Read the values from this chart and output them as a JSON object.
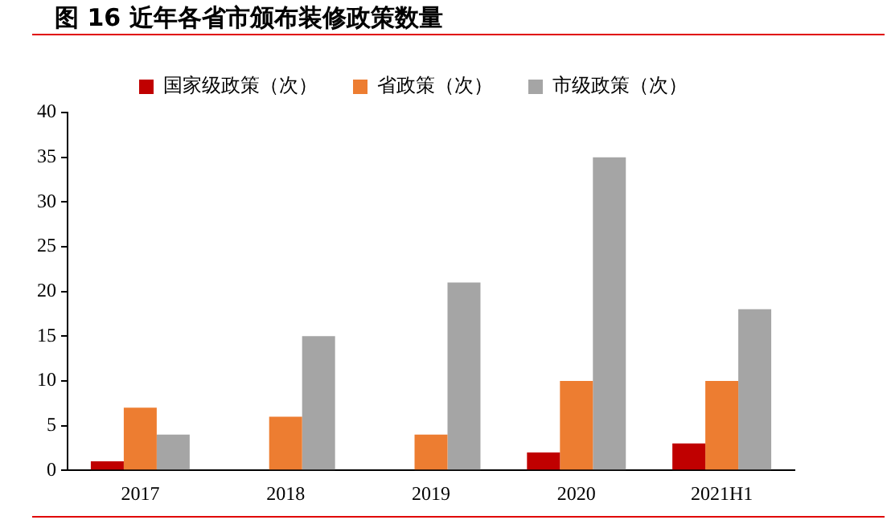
{
  "chart_data": {
    "type": "bar",
    "title": "图 16 近年各省市颁布装修政策数量",
    "categories": [
      "2017",
      "2018",
      "2019",
      "2020",
      "2021H1"
    ],
    "series": [
      {
        "name": "国家级政策（次）",
        "color": "#c00000",
        "values": [
          1,
          0,
          0,
          2,
          3
        ]
      },
      {
        "name": "省政策（次）",
        "color": "#ed7d31",
        "values": [
          7,
          6,
          4,
          10,
          10
        ]
      },
      {
        "name": "市级政策（次）",
        "color": "#a5a5a5",
        "values": [
          4,
          15,
          21,
          35,
          18
        ]
      }
    ],
    "ylim": [
      0,
      40
    ],
    "yticks": [
      0,
      5,
      10,
      15,
      20,
      25,
      30,
      35,
      40
    ],
    "grid": false,
    "legend": "top"
  }
}
